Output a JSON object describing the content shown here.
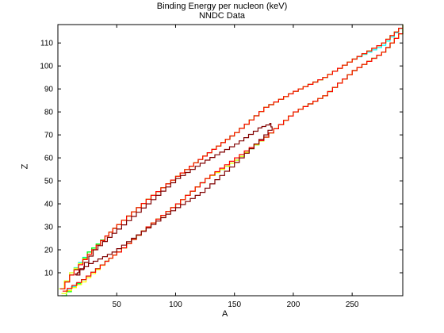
{
  "chart_data": {
    "type": "line",
    "title": "Binding Energy per nucleon (keV)",
    "subtitle": "NNDC Data",
    "xlabel": "A",
    "ylabel": "Z",
    "xlim": [
      0,
      293
    ],
    "ylim": [
      0,
      118
    ],
    "xticks": [
      50,
      100,
      150,
      200,
      250
    ],
    "yticks": [
      10,
      20,
      30,
      40,
      50,
      60,
      70,
      80,
      90,
      100,
      110
    ],
    "grid": false,
    "legend": "none",
    "series": [
      {
        "color": "#00ffff",
        "upper": [
          [
            1,
            3
          ],
          [
            10,
            10
          ],
          [
            25,
            19
          ],
          [
            40,
            26
          ],
          [
            50,
            31
          ],
          [
            75,
            42
          ],
          [
            100,
            52
          ],
          [
            150,
            71
          ],
          [
            175,
            82
          ],
          [
            200,
            89
          ],
          [
            225,
            95
          ],
          [
            250,
            103
          ],
          [
            275,
            109
          ],
          [
            293,
            118
          ]
        ],
        "lower": [
          [
            3,
            1
          ],
          [
            20,
            7
          ],
          [
            40,
            15
          ],
          [
            50,
            19
          ],
          [
            75,
            30
          ],
          [
            100,
            40
          ],
          [
            125,
            51
          ],
          [
            150,
            59
          ],
          [
            175,
            69
          ],
          [
            200,
            80
          ],
          [
            225,
            87
          ],
          [
            250,
            98
          ],
          [
            275,
            106
          ],
          [
            293,
            116
          ]
        ]
      },
      {
        "color": "#00ff00",
        "upper": [
          [
            1,
            3
          ],
          [
            10,
            9
          ],
          [
            25,
            19
          ],
          [
            40,
            26
          ],
          [
            50,
            31
          ],
          [
            75,
            42
          ],
          [
            100,
            52
          ],
          [
            150,
            71
          ],
          [
            175,
            82
          ],
          [
            200,
            89
          ],
          [
            225,
            95
          ],
          [
            250,
            103
          ],
          [
            275,
            110
          ],
          [
            293,
            118
          ]
        ],
        "lower": [
          [
            3,
            0
          ],
          [
            20,
            7
          ],
          [
            40,
            15
          ],
          [
            50,
            19
          ],
          [
            75,
            30
          ],
          [
            100,
            40
          ],
          [
            125,
            51
          ],
          [
            150,
            59
          ],
          [
            175,
            69
          ],
          [
            200,
            80
          ],
          [
            225,
            87
          ],
          [
            250,
            98
          ],
          [
            275,
            106
          ],
          [
            293,
            116
          ]
        ]
      },
      {
        "color": "#ffff00",
        "upper": [
          [
            1,
            3
          ],
          [
            10,
            10
          ],
          [
            25,
            18
          ],
          [
            40,
            26
          ],
          [
            50,
            31
          ],
          [
            75,
            42
          ],
          [
            100,
            52
          ],
          [
            150,
            71
          ],
          [
            175,
            82
          ],
          [
            200,
            89
          ],
          [
            225,
            95
          ],
          [
            250,
            103
          ],
          [
            275,
            110
          ],
          [
            293,
            118
          ]
        ],
        "lower": [
          [
            3,
            1
          ],
          [
            20,
            6
          ],
          [
            40,
            15
          ],
          [
            50,
            19
          ],
          [
            75,
            30
          ],
          [
            100,
            40
          ],
          [
            125,
            51
          ],
          [
            150,
            59
          ],
          [
            175,
            69
          ],
          [
            200,
            80
          ],
          [
            225,
            87
          ],
          [
            250,
            98
          ],
          [
            275,
            106
          ],
          [
            293,
            116
          ]
        ]
      },
      {
        "color": "#ff0000",
        "upper": [
          [
            2,
            3
          ],
          [
            10,
            9
          ],
          [
            25,
            18
          ],
          [
            40,
            26
          ],
          [
            50,
            31
          ],
          [
            75,
            42
          ],
          [
            100,
            52
          ],
          [
            150,
            71
          ],
          [
            175,
            82
          ],
          [
            200,
            89
          ],
          [
            225,
            95
          ],
          [
            250,
            103
          ],
          [
            275,
            110
          ],
          [
            293,
            118
          ]
        ],
        "lower": [
          [
            4,
            2
          ],
          [
            20,
            7
          ],
          [
            40,
            15
          ],
          [
            50,
            19
          ],
          [
            75,
            30
          ],
          [
            100,
            40
          ],
          [
            125,
            51
          ],
          [
            150,
            60
          ],
          [
            175,
            69
          ],
          [
            200,
            80
          ],
          [
            225,
            87
          ],
          [
            250,
            98
          ],
          [
            275,
            106
          ],
          [
            293,
            116
          ]
        ]
      },
      {
        "color": "#800000",
        "points": [
          [
            15,
            9
          ],
          [
            30,
            20
          ],
          [
            50,
            29
          ],
          [
            75,
            40
          ],
          [
            100,
            51
          ],
          [
            125,
            59
          ],
          [
            150,
            66
          ],
          [
            170,
            73
          ],
          [
            180,
            75
          ],
          [
            182,
            72
          ],
          [
            175,
            68
          ],
          [
            150,
            56
          ],
          [
            125,
            45
          ],
          [
            100,
            37
          ],
          [
            75,
            28
          ],
          [
            50,
            19
          ],
          [
            30,
            14
          ],
          [
            18,
            10
          ],
          [
            15,
            9
          ]
        ]
      }
    ]
  }
}
